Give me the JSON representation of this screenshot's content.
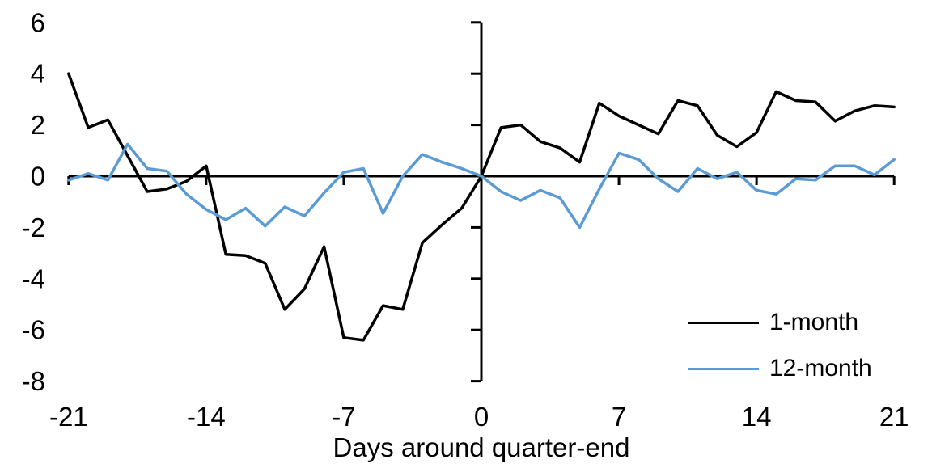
{
  "chart_data": {
    "type": "line",
    "title": "",
    "xlabel": "Days around quarter-end",
    "ylabel": "",
    "xlim": [
      -21,
      21
    ],
    "ylim": [
      -8,
      6
    ],
    "grid": false,
    "legend_position": "inside-bottom-right",
    "axis_color": "#000000",
    "x_ticks": [
      -21,
      -14,
      -7,
      0,
      7,
      14,
      21
    ],
    "y_ticks": [
      6,
      4,
      2,
      0,
      -2,
      -4,
      -6,
      -8
    ],
    "x": [
      -21,
      -20,
      -19,
      -18,
      -17,
      -16,
      -15,
      -14,
      -13,
      -12,
      -11,
      -10,
      -9,
      -8,
      -7,
      -6,
      -5,
      -4,
      -3,
      -2,
      -1,
      0,
      1,
      2,
      3,
      4,
      5,
      6,
      7,
      8,
      9,
      10,
      11,
      12,
      13,
      14,
      15,
      16,
      17,
      18,
      19,
      20,
      21
    ],
    "series": [
      {
        "name": "1-month",
        "color": "#000000",
        "values": [
          4.0,
          1.9,
          2.2,
          0.8,
          -0.6,
          -0.5,
          -0.2,
          0.4,
          -3.05,
          -3.1,
          -3.4,
          -5.2,
          -4.4,
          -2.75,
          -6.3,
          -6.4,
          -5.05,
          -5.2,
          -2.6,
          -1.9,
          -1.25,
          0.0,
          1.9,
          2.0,
          1.35,
          1.1,
          0.55,
          2.85,
          2.35,
          2.0,
          1.65,
          2.95,
          2.75,
          1.6,
          1.15,
          1.7,
          3.3,
          2.95,
          2.9,
          2.15,
          2.55,
          2.75,
          2.7
        ]
      },
      {
        "name": "12-month",
        "color": "#5B9BD5",
        "values": [
          -0.15,
          0.1,
          -0.15,
          1.25,
          0.3,
          0.2,
          -0.7,
          -1.3,
          -1.7,
          -1.25,
          -1.95,
          -1.2,
          -1.55,
          -0.65,
          0.15,
          0.3,
          -1.45,
          0.0,
          0.85,
          0.55,
          0.3,
          0.0,
          -0.6,
          -0.95,
          -0.55,
          -0.85,
          -2.0,
          -0.5,
          0.9,
          0.65,
          -0.1,
          -0.6,
          0.3,
          -0.1,
          0.15,
          -0.55,
          -0.7,
          -0.1,
          -0.15,
          0.4,
          0.4,
          0.05,
          0.65
        ]
      }
    ]
  }
}
